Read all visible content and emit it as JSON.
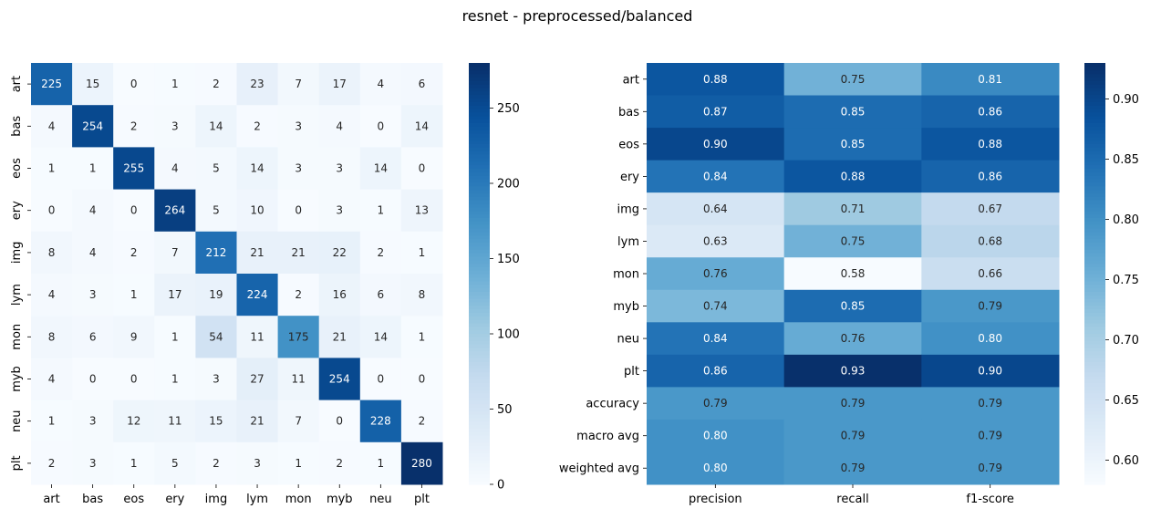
{
  "suptitle": "resnet - preprocessed/balanced",
  "chart_data": [
    {
      "type": "heatmap",
      "name": "confusion-matrix",
      "rows": [
        "art",
        "bas",
        "eos",
        "ery",
        "img",
        "lym",
        "mon",
        "myb",
        "neu",
        "plt"
      ],
      "cols": [
        "art",
        "bas",
        "eos",
        "ery",
        "img",
        "lym",
        "mon",
        "myb",
        "neu",
        "plt"
      ],
      "values": [
        [
          225,
          15,
          0,
          1,
          2,
          23,
          7,
          17,
          4,
          6
        ],
        [
          4,
          254,
          2,
          3,
          14,
          2,
          3,
          4,
          0,
          14
        ],
        [
          1,
          1,
          255,
          4,
          5,
          14,
          3,
          3,
          14,
          0
        ],
        [
          0,
          4,
          0,
          264,
          5,
          10,
          0,
          3,
          1,
          13
        ],
        [
          8,
          4,
          2,
          7,
          212,
          21,
          21,
          22,
          2,
          1
        ],
        [
          4,
          3,
          1,
          17,
          19,
          224,
          2,
          16,
          6,
          8
        ],
        [
          8,
          6,
          9,
          1,
          54,
          11,
          175,
          21,
          14,
          1
        ],
        [
          4,
          0,
          0,
          1,
          3,
          27,
          11,
          254,
          0,
          0
        ],
        [
          1,
          3,
          12,
          11,
          15,
          21,
          7,
          0,
          228,
          2
        ],
        [
          2,
          3,
          1,
          5,
          2,
          3,
          1,
          2,
          1,
          280
        ]
      ],
      "value_format": "integer",
      "colorscale": "Blues",
      "vmin": 0,
      "vmax": 280,
      "colorbar_ticks": [
        "0",
        "50",
        "100",
        "150",
        "200",
        "250"
      ],
      "colorbar_tick_values": [
        0,
        50,
        100,
        150,
        200,
        250
      ]
    },
    {
      "type": "heatmap",
      "name": "classification-report",
      "rows": [
        "art",
        "bas",
        "eos",
        "ery",
        "img",
        "lym",
        "mon",
        "myb",
        "neu",
        "plt",
        "accuracy",
        "macro avg",
        "weighted avg"
      ],
      "cols": [
        "precision",
        "recall",
        "f1-score"
      ],
      "values": [
        [
          0.88,
          0.75,
          0.81
        ],
        [
          0.87,
          0.85,
          0.86
        ],
        [
          0.9,
          0.85,
          0.88
        ],
        [
          0.84,
          0.88,
          0.86
        ],
        [
          0.64,
          0.71,
          0.67
        ],
        [
          0.63,
          0.75,
          0.68
        ],
        [
          0.76,
          0.58,
          0.66
        ],
        [
          0.74,
          0.85,
          0.79
        ],
        [
          0.84,
          0.76,
          0.8
        ],
        [
          0.86,
          0.93,
          0.9
        ],
        [
          0.79,
          0.79,
          0.79
        ],
        [
          0.8,
          0.79,
          0.79
        ],
        [
          0.8,
          0.79,
          0.79
        ]
      ],
      "value_format": "2dp",
      "colorscale": "Blues",
      "vmin": 0.58,
      "vmax": 0.93,
      "colorbar_ticks": [
        "0.60",
        "0.65",
        "0.70",
        "0.75",
        "0.80",
        "0.85",
        "0.90"
      ],
      "colorbar_tick_values": [
        0.6,
        0.65,
        0.7,
        0.75,
        0.8,
        0.85,
        0.9
      ]
    }
  ]
}
